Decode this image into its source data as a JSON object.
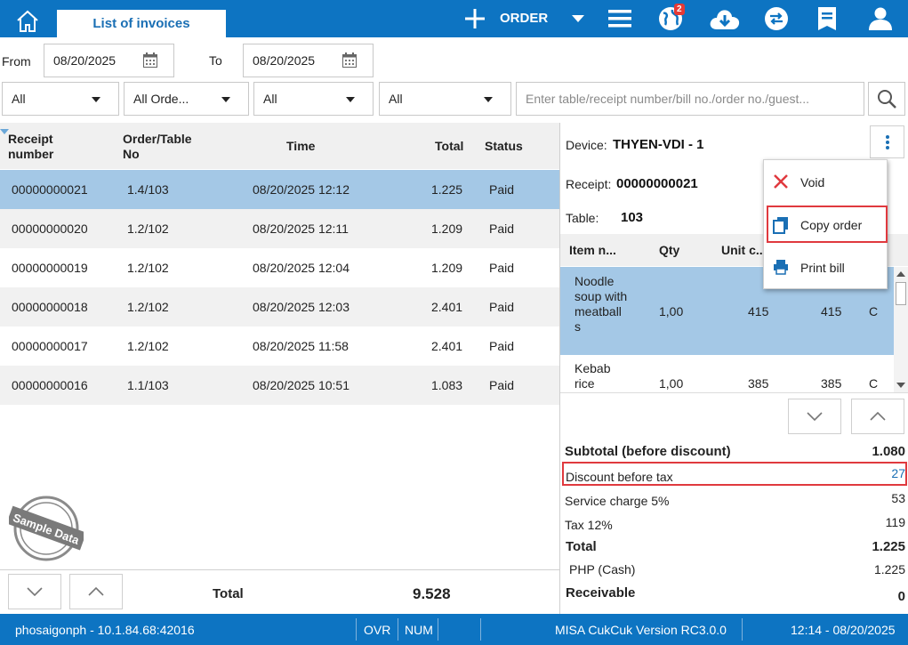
{
  "topbar": {
    "tab_label": "List of invoices",
    "order_label": "ORDER",
    "notification_count": "2"
  },
  "filters": {
    "from_label": "From",
    "from_date": "08/20/2025",
    "to_label": "To",
    "to_date": "08/20/2025",
    "dropdowns": [
      "All",
      "All Orde...",
      "All",
      "All"
    ],
    "search_placeholder": "Enter table/receipt number/bill no./order no./guest..."
  },
  "list": {
    "columns": [
      "Receipt number",
      "Order/Table No",
      "Time",
      "Total",
      "Status"
    ],
    "rows": [
      {
        "receipt": "00000000021",
        "table": "1.4/103",
        "time": "08/20/2025 12:12",
        "total": "1.225",
        "status": "Paid"
      },
      {
        "receipt": "00000000020",
        "table": "1.2/102",
        "time": "08/20/2025 12:11",
        "total": "1.209",
        "status": "Paid"
      },
      {
        "receipt": "00000000019",
        "table": "1.2/102",
        "time": "08/20/2025 12:04",
        "total": "1.209",
        "status": "Paid"
      },
      {
        "receipt": "00000000018",
        "table": "1.2/102",
        "time": "08/20/2025 12:03",
        "total": "2.401",
        "status": "Paid"
      },
      {
        "receipt": "00000000017",
        "table": "1.2/102",
        "time": "08/20/2025 11:58",
        "total": "2.401",
        "status": "Paid"
      },
      {
        "receipt": "00000000016",
        "table": "1.1/103",
        "time": "08/20/2025 10:51",
        "total": "1.083",
        "status": "Paid"
      }
    ],
    "footer_total_label": "Total",
    "footer_total_value": "9.528",
    "stamp_text": "Sample Data"
  },
  "detail": {
    "device_label": "Device:",
    "device_value": "THYEN-VDI - 1",
    "receipt_label": "Receipt:",
    "receipt_value": "00000000021",
    "table_label": "Table:",
    "table_value": "103",
    "item_columns": [
      "Item n...",
      "Qty",
      "Unit c..."
    ],
    "items": [
      {
        "name": "Noodle soup with meatball s",
        "qty": "1,00",
        "unit": "415",
        "amount": "415",
        "flag": "C"
      },
      {
        "name": "Kebab rice",
        "qty": "1,00",
        "unit": "385",
        "amount": "385",
        "flag": "C"
      }
    ],
    "summary": {
      "subtotal_label": "Subtotal (before discount)",
      "subtotal_value": "1.080",
      "discount_label": "Discount before tax",
      "discount_value": "27",
      "service_label": "Service charge 5%",
      "service_value": "53",
      "tax_label": "Tax 12%",
      "tax_value": "119",
      "total_label": "Total",
      "total_value": "1.225",
      "payment_label": "PHP (Cash)",
      "payment_value": "1.225",
      "receivable_label": "Receivable",
      "receivable_value": "0"
    }
  },
  "menu": {
    "void": "Void",
    "copy_order": "Copy order",
    "print_bill": "Print bill"
  },
  "statusbar": {
    "connection": "phosaigonph - 10.1.84.68:42016",
    "ovr": "OVR",
    "num": "NUM",
    "version": "MISA CukCuk Version RC3.0.0",
    "clock": "12:14 - 08/20/2025"
  },
  "colors": {
    "brand_blue": "#0d74c2",
    "selected_row": "#a4c8e6",
    "highlight_red": "#e0393e",
    "discount_blue": "#1a6fb4"
  }
}
